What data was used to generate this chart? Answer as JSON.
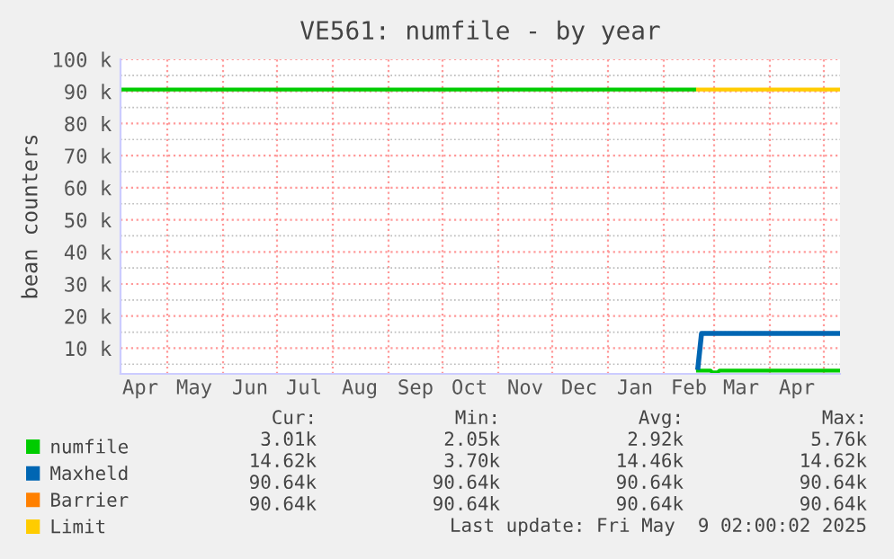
{
  "chart_data": {
    "type": "line",
    "title": "VE561: numfile - by year",
    "ylabel": "bean counters",
    "xlim": [
      "2024-04-05",
      "2025-05-10"
    ],
    "xticks": [
      {
        "value": "2024-04-16",
        "label": "Apr"
      },
      {
        "value": "2024-05-16",
        "label": "May"
      },
      {
        "value": "2024-06-16",
        "label": "Jun"
      },
      {
        "value": "2024-07-16",
        "label": "Jul"
      },
      {
        "value": "2024-08-16",
        "label": "Aug"
      },
      {
        "value": "2024-09-16",
        "label": "Sep"
      },
      {
        "value": "2024-10-16",
        "label": "Oct"
      },
      {
        "value": "2024-11-16",
        "label": "Nov"
      },
      {
        "value": "2024-12-16",
        "label": "Dec"
      },
      {
        "value": "2025-01-16",
        "label": "Jan"
      },
      {
        "value": "2025-02-15",
        "label": "Feb"
      },
      {
        "value": "2025-03-16",
        "label": "Mar"
      },
      {
        "value": "2025-04-16",
        "label": "Apr"
      }
    ],
    "ylim": [
      2000,
      100000
    ],
    "yticks": [
      {
        "value": 10000,
        "label": "10 k"
      },
      {
        "value": 20000,
        "label": "20 k"
      },
      {
        "value": 30000,
        "label": "30 k"
      },
      {
        "value": 40000,
        "label": "40 k"
      },
      {
        "value": 50000,
        "label": "50 k"
      },
      {
        "value": 60000,
        "label": "60 k"
      },
      {
        "value": 70000,
        "label": "70 k"
      },
      {
        "value": 80000,
        "label": "80 k"
      },
      {
        "value": 90000,
        "label": "90 k"
      },
      {
        "value": 100000,
        "label": "100 k"
      }
    ],
    "grid": true,
    "legend": "bottom",
    "series": [
      {
        "name": "numfile",
        "color": "#00cc00",
        "x": [
          "2024-04-05",
          "2025-02-18",
          "2025-02-19",
          "2025-02-20",
          "2025-02-27",
          "2025-02-28",
          "2025-03-03",
          "2025-03-04",
          "2025-05-09"
        ],
        "values": [
          90600,
          90600,
          null,
          3000,
          3000,
          2500,
          2500,
          3000,
          3000
        ]
      },
      {
        "name": "Maxheld",
        "color": "#0066b3",
        "x": [
          "2025-02-20",
          "2025-02-22",
          "2025-05-09"
        ],
        "values": [
          4000,
          14600,
          14600
        ]
      },
      {
        "name": "Barrier",
        "color": "#ff8000"
      },
      {
        "name": "Limit",
        "color": "#ffcc00",
        "x": [
          "2025-02-20",
          "2025-05-09"
        ],
        "values": [
          90600,
          90600
        ]
      }
    ],
    "annotations": [
      "Cur:",
      "Min:",
      "Avg:",
      "Max:",
      "3.01k",
      "2.05k",
      "2.92k",
      "5.76k",
      "14.62k",
      "3.70k",
      "14.46k",
      "14.62k",
      "90.64k",
      "90.64k",
      "90.64k",
      "90.64k",
      "90.64k",
      "90.64k",
      "90.64k",
      "90.64k",
      "Last update: Fri May  9 02:00:02 2025"
    ]
  }
}
